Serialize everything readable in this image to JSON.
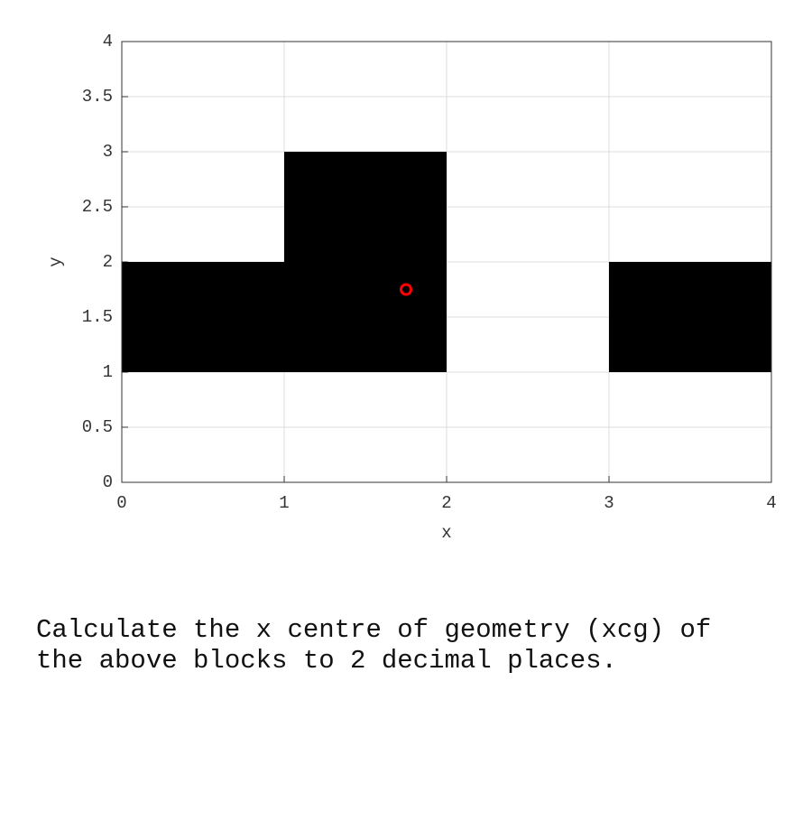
{
  "chart_data": {
    "type": "blocks",
    "x_label": "x",
    "y_label": "y",
    "xlim": [
      0,
      4
    ],
    "ylim": [
      0,
      4
    ],
    "xticks": [
      0,
      1,
      2,
      3,
      4
    ],
    "yticks": [
      0,
      0.5,
      1,
      1.5,
      2,
      2.5,
      3,
      3.5,
      4
    ],
    "grid": true,
    "color": "#000000",
    "blocks": [
      {
        "x": [
          0,
          1
        ],
        "y": [
          1,
          2
        ]
      },
      {
        "x": [
          1,
          2
        ],
        "y": [
          1,
          3
        ]
      },
      {
        "x": [
          3,
          4
        ],
        "y": [
          1,
          2
        ]
      }
    ],
    "point": {
      "x": 1.75,
      "y": 1.75,
      "color": "#ff0000"
    }
  },
  "question": "Calculate the x centre of geometry (xcg) of the above blocks to 2 decimal places."
}
